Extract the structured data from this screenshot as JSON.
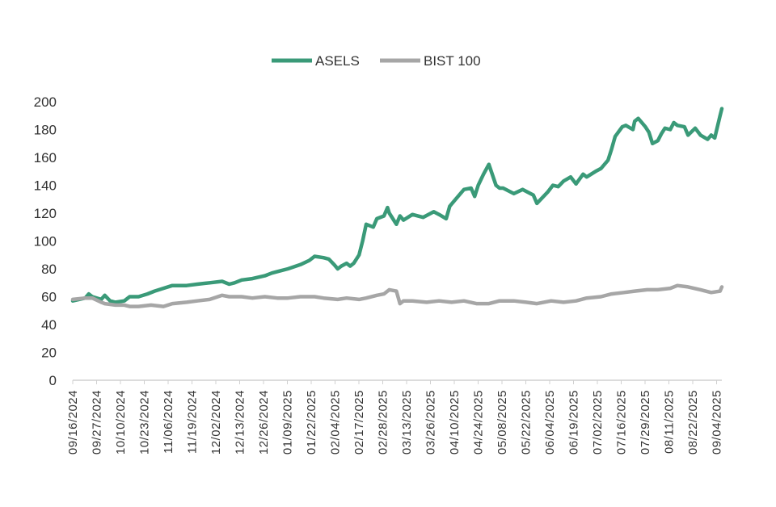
{
  "chart_data": {
    "type": "line",
    "title": "",
    "xlabel": "",
    "ylabel": "",
    "ylim": [
      0,
      200
    ],
    "yticks": [
      0,
      20,
      40,
      60,
      80,
      100,
      120,
      140,
      160,
      180,
      200
    ],
    "grid": false,
    "legend": "top-center",
    "x_tick_labels": [
      "09/16/2024",
      "09/27/2024",
      "10/10/2024",
      "10/23/2024",
      "11/06/2024",
      "11/19/2024",
      "12/02/2024",
      "12/13/2024",
      "12/26/2024",
      "01/09/2025",
      "01/22/2025",
      "02/04/2025",
      "02/17/2025",
      "02/28/2025",
      "03/13/2025",
      "03/26/2025",
      "04/10/2025",
      "04/24/2025",
      "05/08/2025",
      "05/22/2025",
      "06/04/2025",
      "06/19/2025",
      "07/02/2025",
      "07/16/2025",
      "07/29/2025",
      "08/11/2025",
      "08/22/2025",
      "09/04/2025"
    ],
    "series": [
      {
        "name": "ASELS",
        "color": "#3a9a78",
        "points": [
          [
            "09/16/2024",
            57
          ],
          [
            "09/23/2024",
            59
          ],
          [
            "09/25/2024",
            62
          ],
          [
            "09/27/2024",
            60
          ],
          [
            "10/02/2024",
            58
          ],
          [
            "10/04/2024",
            61
          ],
          [
            "10/07/2024",
            57
          ],
          [
            "10/10/2024",
            56
          ],
          [
            "10/15/2024",
            57
          ],
          [
            "10/18/2024",
            60
          ],
          [
            "10/23/2024",
            60
          ],
          [
            "10/28/2024",
            62
          ],
          [
            "11/01/2024",
            64
          ],
          [
            "11/06/2024",
            66
          ],
          [
            "11/11/2024",
            68
          ],
          [
            "11/15/2024",
            68
          ],
          [
            "11/19/2024",
            68
          ],
          [
            "11/25/2024",
            69
          ],
          [
            "12/02/2024",
            70
          ],
          [
            "12/09/2024",
            71
          ],
          [
            "12/13/2024",
            69
          ],
          [
            "12/16/2024",
            70
          ],
          [
            "12/20/2024",
            72
          ],
          [
            "12/26/2024",
            73
          ],
          [
            "01/02/2025",
            75
          ],
          [
            "01/06/2025",
            77
          ],
          [
            "01/09/2025",
            78
          ],
          [
            "01/15/2025",
            80
          ],
          [
            "01/22/2025",
            83
          ],
          [
            "01/27/2025",
            86
          ],
          [
            "01/30/2025",
            89
          ],
          [
            "02/04/2025",
            88
          ],
          [
            "02/07/2025",
            87
          ],
          [
            "02/10/2025",
            83
          ],
          [
            "02/12/2025",
            80
          ],
          [
            "02/14/2025",
            82
          ],
          [
            "02/17/2025",
            84
          ],
          [
            "02/19/2025",
            82
          ],
          [
            "02/21/2025",
            84
          ],
          [
            "02/24/2025",
            90
          ],
          [
            "02/26/2025",
            100
          ],
          [
            "02/28/2025",
            112
          ],
          [
            "03/04/2025",
            110
          ],
          [
            "03/06/2025",
            116
          ],
          [
            "03/10/2025",
            118
          ],
          [
            "03/12/2025",
            124
          ],
          [
            "03/13/2025",
            120
          ],
          [
            "03/17/2025",
            112
          ],
          [
            "03/19/2025",
            118
          ],
          [
            "03/21/2025",
            115
          ],
          [
            "03/26/2025",
            119
          ],
          [
            "04/01/2025",
            117
          ],
          [
            "04/07/2025",
            121
          ],
          [
            "04/10/2025",
            119
          ],
          [
            "04/14/2025",
            116
          ],
          [
            "04/16/2025",
            125
          ],
          [
            "04/18/2025",
            128
          ],
          [
            "04/22/2025",
            134
          ],
          [
            "04/24/2025",
            137
          ],
          [
            "04/28/2025",
            138
          ],
          [
            "04/30/2025",
            132
          ],
          [
            "05/02/2025",
            140
          ],
          [
            "05/05/2025",
            148
          ],
          [
            "05/08/2025",
            155
          ],
          [
            "05/12/2025",
            140
          ],
          [
            "05/14/2025",
            138
          ],
          [
            "05/16/2025",
            138
          ],
          [
            "05/22/2025",
            134
          ],
          [
            "05/27/2025",
            137
          ],
          [
            "06/02/2025",
            133
          ],
          [
            "06/04/2025",
            127
          ],
          [
            "06/10/2025",
            135
          ],
          [
            "06/13/2025",
            140
          ],
          [
            "06/16/2025",
            139
          ],
          [
            "06/19/2025",
            143
          ],
          [
            "06/23/2025",
            146
          ],
          [
            "06/26/2025",
            141
          ],
          [
            "06/30/2025",
            148
          ],
          [
            "07/02/2025",
            146
          ],
          [
            "07/07/2025",
            150
          ],
          [
            "07/10/2025",
            152
          ],
          [
            "07/14/2025",
            158
          ],
          [
            "07/16/2025",
            166
          ],
          [
            "07/18/2025",
            175
          ],
          [
            "07/22/2025",
            182
          ],
          [
            "07/24/2025",
            183
          ],
          [
            "07/28/2025",
            180
          ],
          [
            "07/29/2025",
            186
          ],
          [
            "07/31/2025",
            188
          ],
          [
            "08/04/2025",
            182
          ],
          [
            "08/06/2025",
            178
          ],
          [
            "08/08/2025",
            170
          ],
          [
            "08/11/2025",
            172
          ],
          [
            "08/13/2025",
            177
          ],
          [
            "08/15/2025",
            181
          ],
          [
            "08/18/2025",
            180
          ],
          [
            "08/20/2025",
            185
          ],
          [
            "08/22/2025",
            183
          ],
          [
            "08/26/2025",
            182
          ],
          [
            "08/28/2025",
            176
          ],
          [
            "09/01/2025",
            181
          ],
          [
            "09/04/2025",
            176
          ],
          [
            "09/08/2025",
            173
          ],
          [
            "09/10/2025",
            176
          ],
          [
            "09/12/2025",
            174
          ],
          [
            "09/15/2025",
            190
          ],
          [
            "09/16/2025",
            195
          ]
        ]
      },
      {
        "name": "BIST 100",
        "color": "#a6a6a6",
        "points": [
          [
            "09/16/2024",
            58
          ],
          [
            "09/23/2024",
            59
          ],
          [
            "09/27/2024",
            59
          ],
          [
            "10/02/2024",
            56
          ],
          [
            "10/04/2024",
            55
          ],
          [
            "10/10/2024",
            54
          ],
          [
            "10/15/2024",
            54
          ],
          [
            "10/18/2024",
            53
          ],
          [
            "10/23/2024",
            53
          ],
          [
            "10/30/2024",
            54
          ],
          [
            "11/06/2024",
            53
          ],
          [
            "11/11/2024",
            55
          ],
          [
            "11/19/2024",
            56
          ],
          [
            "11/25/2024",
            57
          ],
          [
            "12/02/2024",
            58
          ],
          [
            "12/09/2024",
            61
          ],
          [
            "12/13/2024",
            60
          ],
          [
            "12/20/2024",
            60
          ],
          [
            "12/26/2024",
            59
          ],
          [
            "01/02/2025",
            60
          ],
          [
            "01/09/2025",
            59
          ],
          [
            "01/15/2025",
            59
          ],
          [
            "01/22/2025",
            60
          ],
          [
            "01/30/2025",
            60
          ],
          [
            "02/04/2025",
            59
          ],
          [
            "02/12/2025",
            58
          ],
          [
            "02/17/2025",
            59
          ],
          [
            "02/24/2025",
            58
          ],
          [
            "02/28/2025",
            59
          ],
          [
            "03/06/2025",
            61
          ],
          [
            "03/10/2025",
            62
          ],
          [
            "03/13/2025",
            65
          ],
          [
            "03/17/2025",
            64
          ],
          [
            "03/19/2025",
            55
          ],
          [
            "03/21/2025",
            57
          ],
          [
            "03/26/2025",
            57
          ],
          [
            "04/03/2025",
            56
          ],
          [
            "04/10/2025",
            57
          ],
          [
            "04/17/2025",
            56
          ],
          [
            "04/24/2025",
            57
          ],
          [
            "05/01/2025",
            55
          ],
          [
            "05/08/2025",
            55
          ],
          [
            "05/14/2025",
            57
          ],
          [
            "05/22/2025",
            57
          ],
          [
            "05/29/2025",
            56
          ],
          [
            "06/04/2025",
            55
          ],
          [
            "06/12/2025",
            57
          ],
          [
            "06/19/2025",
            56
          ],
          [
            "06/26/2025",
            57
          ],
          [
            "07/02/2025",
            59
          ],
          [
            "07/10/2025",
            60
          ],
          [
            "07/16/2025",
            62
          ],
          [
            "07/23/2025",
            63
          ],
          [
            "07/29/2025",
            64
          ],
          [
            "08/05/2025",
            65
          ],
          [
            "08/11/2025",
            65
          ],
          [
            "08/18/2025",
            66
          ],
          [
            "08/22/2025",
            68
          ],
          [
            "08/28/2025",
            67
          ],
          [
            "09/04/2025",
            65
          ],
          [
            "09/10/2025",
            63
          ],
          [
            "09/15/2025",
            64
          ],
          [
            "09/16/2025",
            67
          ]
        ]
      }
    ]
  }
}
